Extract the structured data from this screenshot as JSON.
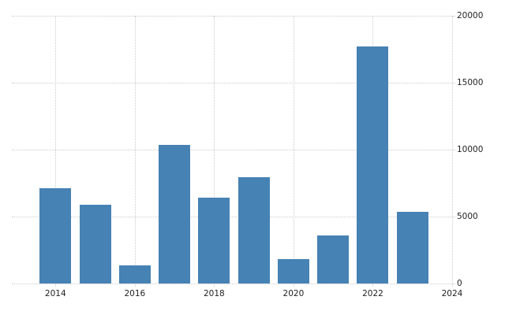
{
  "chart_data": {
    "type": "bar",
    "categories": [
      2014,
      2015,
      2016,
      2017,
      2018,
      2019,
      2020,
      2021,
      2022,
      2023
    ],
    "values": [
      7130,
      5910,
      1340,
      10380,
      6390,
      7970,
      1850,
      3590,
      17680,
      5330
    ],
    "title": "",
    "xlabel": "",
    "ylabel": "",
    "ylim": [
      0,
      20000
    ],
    "y_ticks": [
      0,
      5000,
      10000,
      15000,
      20000
    ],
    "x_ticks": [
      2014,
      2016,
      2018,
      2020,
      2022,
      2024
    ],
    "x_range": [
      2012.9,
      2024
    ],
    "grid": true,
    "legend": false,
    "colors": {
      "bar": "#4682b4",
      "gridline": "#cccccc",
      "tick_label": "#222222"
    }
  }
}
